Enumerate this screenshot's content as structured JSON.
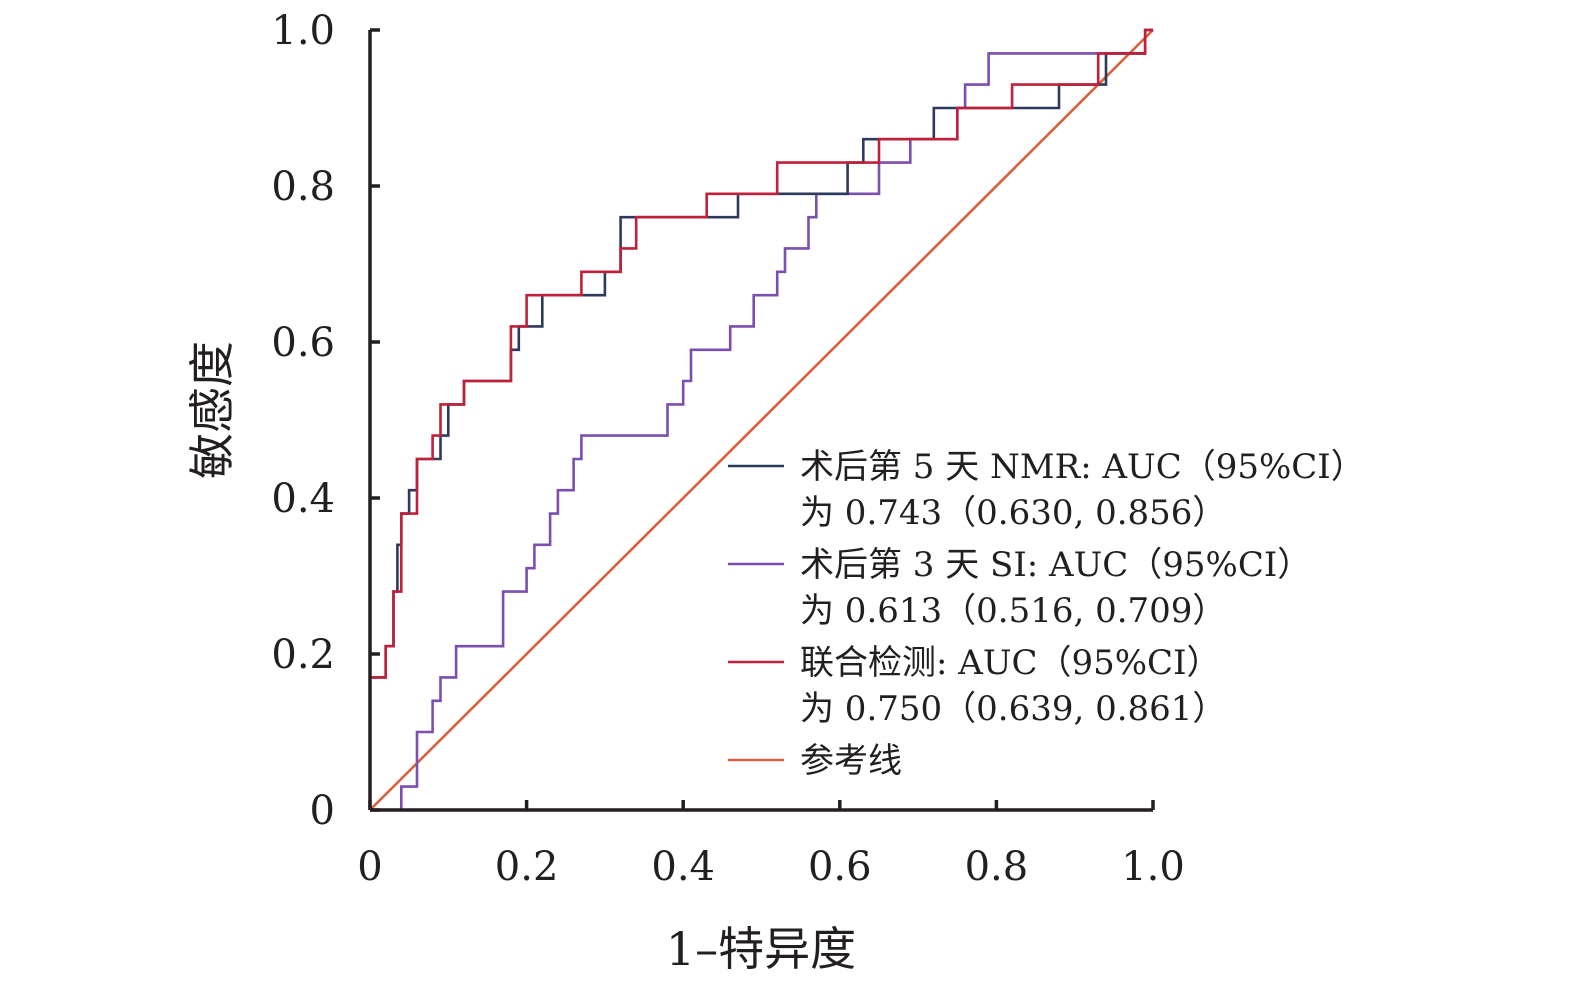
{
  "chart_data": {
    "type": "line",
    "title": "",
    "xlabel": "1–特异度",
    "ylabel": "敏感度",
    "xlim": [
      0,
      1.0
    ],
    "ylim": [
      0,
      1.0
    ],
    "x_ticks": [
      "0",
      "0.2",
      "0.4",
      "0.6",
      "0.8",
      "1.0"
    ],
    "y_ticks": [
      "0",
      "0.2",
      "0.4",
      "0.6",
      "0.8",
      "1.0"
    ],
    "grid": false,
    "legend_position": "right",
    "series": [
      {
        "name": "术后第 5 天 NMR: AUC（95%CI）为 0.743（0.630, 0.856）",
        "legend_lines": [
          "术后第 5 天 NMR: AUC（95%CI）",
          "为 0.743（0.630, 0.856）"
        ],
        "color": "#2e3a5c",
        "x": [
          0,
          0,
          0.02,
          0.02,
          0.03,
          0.03,
          0.035,
          0.035,
          0.04,
          0.04,
          0.05,
          0.05,
          0.06,
          0.06,
          0.07,
          0.07,
          0.09,
          0.09,
          0.1,
          0.1,
          0.12,
          0.12,
          0.18,
          0.18,
          0.19,
          0.19,
          0.22,
          0.22,
          0.27,
          0.27,
          0.3,
          0.3,
          0.32,
          0.32,
          0.34,
          0.34,
          0.47,
          0.47,
          0.61,
          0.61,
          0.63,
          0.63,
          0.68,
          0.68,
          0.72,
          0.72,
          0.75,
          0.75,
          0.82,
          0.82,
          0.88,
          0.88,
          0.94,
          0.94,
          0.99,
          0.99,
          1.0
        ],
        "y": [
          0,
          0.17,
          0.17,
          0.21,
          0.21,
          0.28,
          0.28,
          0.34,
          0.34,
          0.38,
          0.38,
          0.41,
          0.41,
          0.45,
          0.45,
          0.45,
          0.45,
          0.48,
          0.48,
          0.52,
          0.52,
          0.55,
          0.55,
          0.59,
          0.59,
          0.62,
          0.62,
          0.66,
          0.66,
          0.66,
          0.66,
          0.69,
          0.69,
          0.76,
          0.76,
          0.76,
          0.76,
          0.79,
          0.79,
          0.83,
          0.83,
          0.86,
          0.86,
          0.86,
          0.86,
          0.9,
          0.9,
          0.9,
          0.9,
          0.9,
          0.9,
          0.93,
          0.93,
          0.97,
          0.97,
          1.0,
          1.0
        ]
      },
      {
        "name": "术后第 3 天 SI: AUC（95%CI）为 0.613（0.516, 0.709）",
        "legend_lines": [
          "术后第 3 天 SI: AUC（95%CI）",
          "为 0.613（0.516, 0.709）"
        ],
        "color": "#7a4fb0",
        "x": [
          0.04,
          0.04,
          0.06,
          0.06,
          0.08,
          0.08,
          0.09,
          0.09,
          0.11,
          0.11,
          0.17,
          0.17,
          0.2,
          0.2,
          0.21,
          0.21,
          0.23,
          0.23,
          0.24,
          0.24,
          0.26,
          0.26,
          0.27,
          0.27,
          0.3,
          0.3,
          0.38,
          0.38,
          0.4,
          0.4,
          0.41,
          0.41,
          0.46,
          0.46,
          0.49,
          0.49,
          0.52,
          0.52,
          0.53,
          0.53,
          0.56,
          0.56,
          0.57,
          0.57,
          0.65,
          0.65,
          0.69,
          0.69,
          0.71,
          0.71,
          0.75,
          0.75,
          0.76,
          0.76,
          0.79,
          0.79,
          0.99,
          0.99,
          1.0
        ],
        "y": [
          0,
          0.03,
          0.03,
          0.1,
          0.1,
          0.14,
          0.14,
          0.17,
          0.17,
          0.21,
          0.21,
          0.28,
          0.28,
          0.31,
          0.31,
          0.34,
          0.34,
          0.38,
          0.38,
          0.41,
          0.41,
          0.45,
          0.45,
          0.48,
          0.48,
          0.48,
          0.48,
          0.52,
          0.52,
          0.55,
          0.55,
          0.59,
          0.59,
          0.62,
          0.62,
          0.66,
          0.66,
          0.69,
          0.69,
          0.72,
          0.72,
          0.76,
          0.76,
          0.79,
          0.79,
          0.83,
          0.83,
          0.86,
          0.86,
          0.86,
          0.86,
          0.9,
          0.9,
          0.93,
          0.93,
          0.97,
          0.97,
          1.0,
          1.0
        ]
      },
      {
        "name": "联合检测: AUC（95%CI）为 0.750（0.639, 0.861）",
        "legend_lines": [
          "联合检测: AUC（95%CI）",
          "为 0.750（0.639, 0.861）"
        ],
        "color": "#c0203a",
        "x": [
          0,
          0,
          0.02,
          0.02,
          0.03,
          0.03,
          0.04,
          0.04,
          0.06,
          0.06,
          0.08,
          0.08,
          0.09,
          0.09,
          0.12,
          0.12,
          0.18,
          0.18,
          0.2,
          0.2,
          0.27,
          0.27,
          0.32,
          0.32,
          0.34,
          0.34,
          0.43,
          0.43,
          0.52,
          0.52,
          0.65,
          0.65,
          0.69,
          0.69,
          0.75,
          0.75,
          0.82,
          0.82,
          0.93,
          0.93,
          0.99,
          0.99,
          1.0
        ],
        "y": [
          0,
          0.17,
          0.17,
          0.21,
          0.21,
          0.28,
          0.28,
          0.38,
          0.38,
          0.45,
          0.45,
          0.48,
          0.48,
          0.52,
          0.52,
          0.55,
          0.55,
          0.62,
          0.62,
          0.66,
          0.66,
          0.69,
          0.69,
          0.72,
          0.72,
          0.76,
          0.76,
          0.79,
          0.79,
          0.83,
          0.83,
          0.86,
          0.86,
          0.86,
          0.86,
          0.9,
          0.9,
          0.93,
          0.93,
          0.97,
          0.97,
          1.0,
          1.0
        ]
      },
      {
        "name": "参考线",
        "legend_lines": [
          "参考线"
        ],
        "color": "#d9603e",
        "x": [
          0,
          1.0
        ],
        "y": [
          0,
          1.0
        ]
      }
    ]
  }
}
